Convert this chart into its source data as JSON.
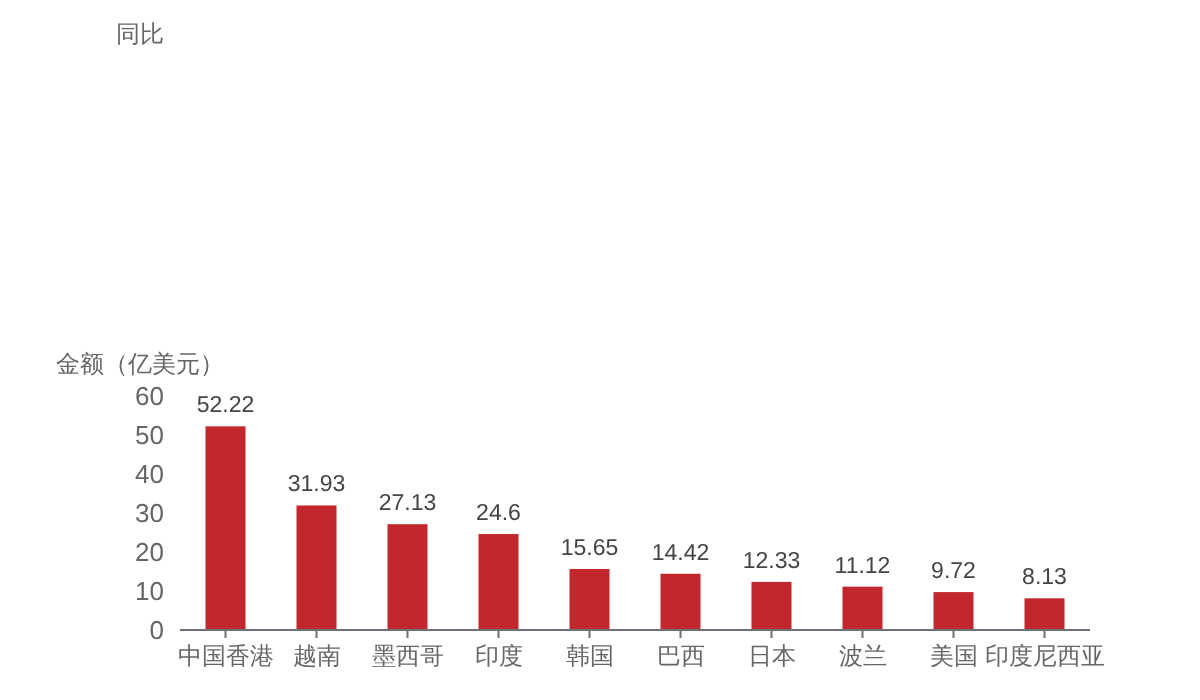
{
  "chart_data": {
    "type": "bar",
    "ylabel": "金额（亿美元）",
    "annotations": [
      "同比"
    ],
    "categories": [
      "中国香港",
      "越南",
      "墨西哥",
      "印度",
      "韩国",
      "巴西",
      "日本",
      "波兰",
      "美国",
      "印度尼西亚"
    ],
    "values": [
      52.22,
      31.93,
      27.13,
      24.6,
      15.65,
      14.42,
      12.33,
      11.12,
      9.72,
      8.13
    ],
    "color": "#c1272d",
    "ylim": [
      0,
      60
    ],
    "yticks": [
      0,
      10,
      20,
      30,
      40,
      50,
      60
    ],
    "data_labels": true
  }
}
